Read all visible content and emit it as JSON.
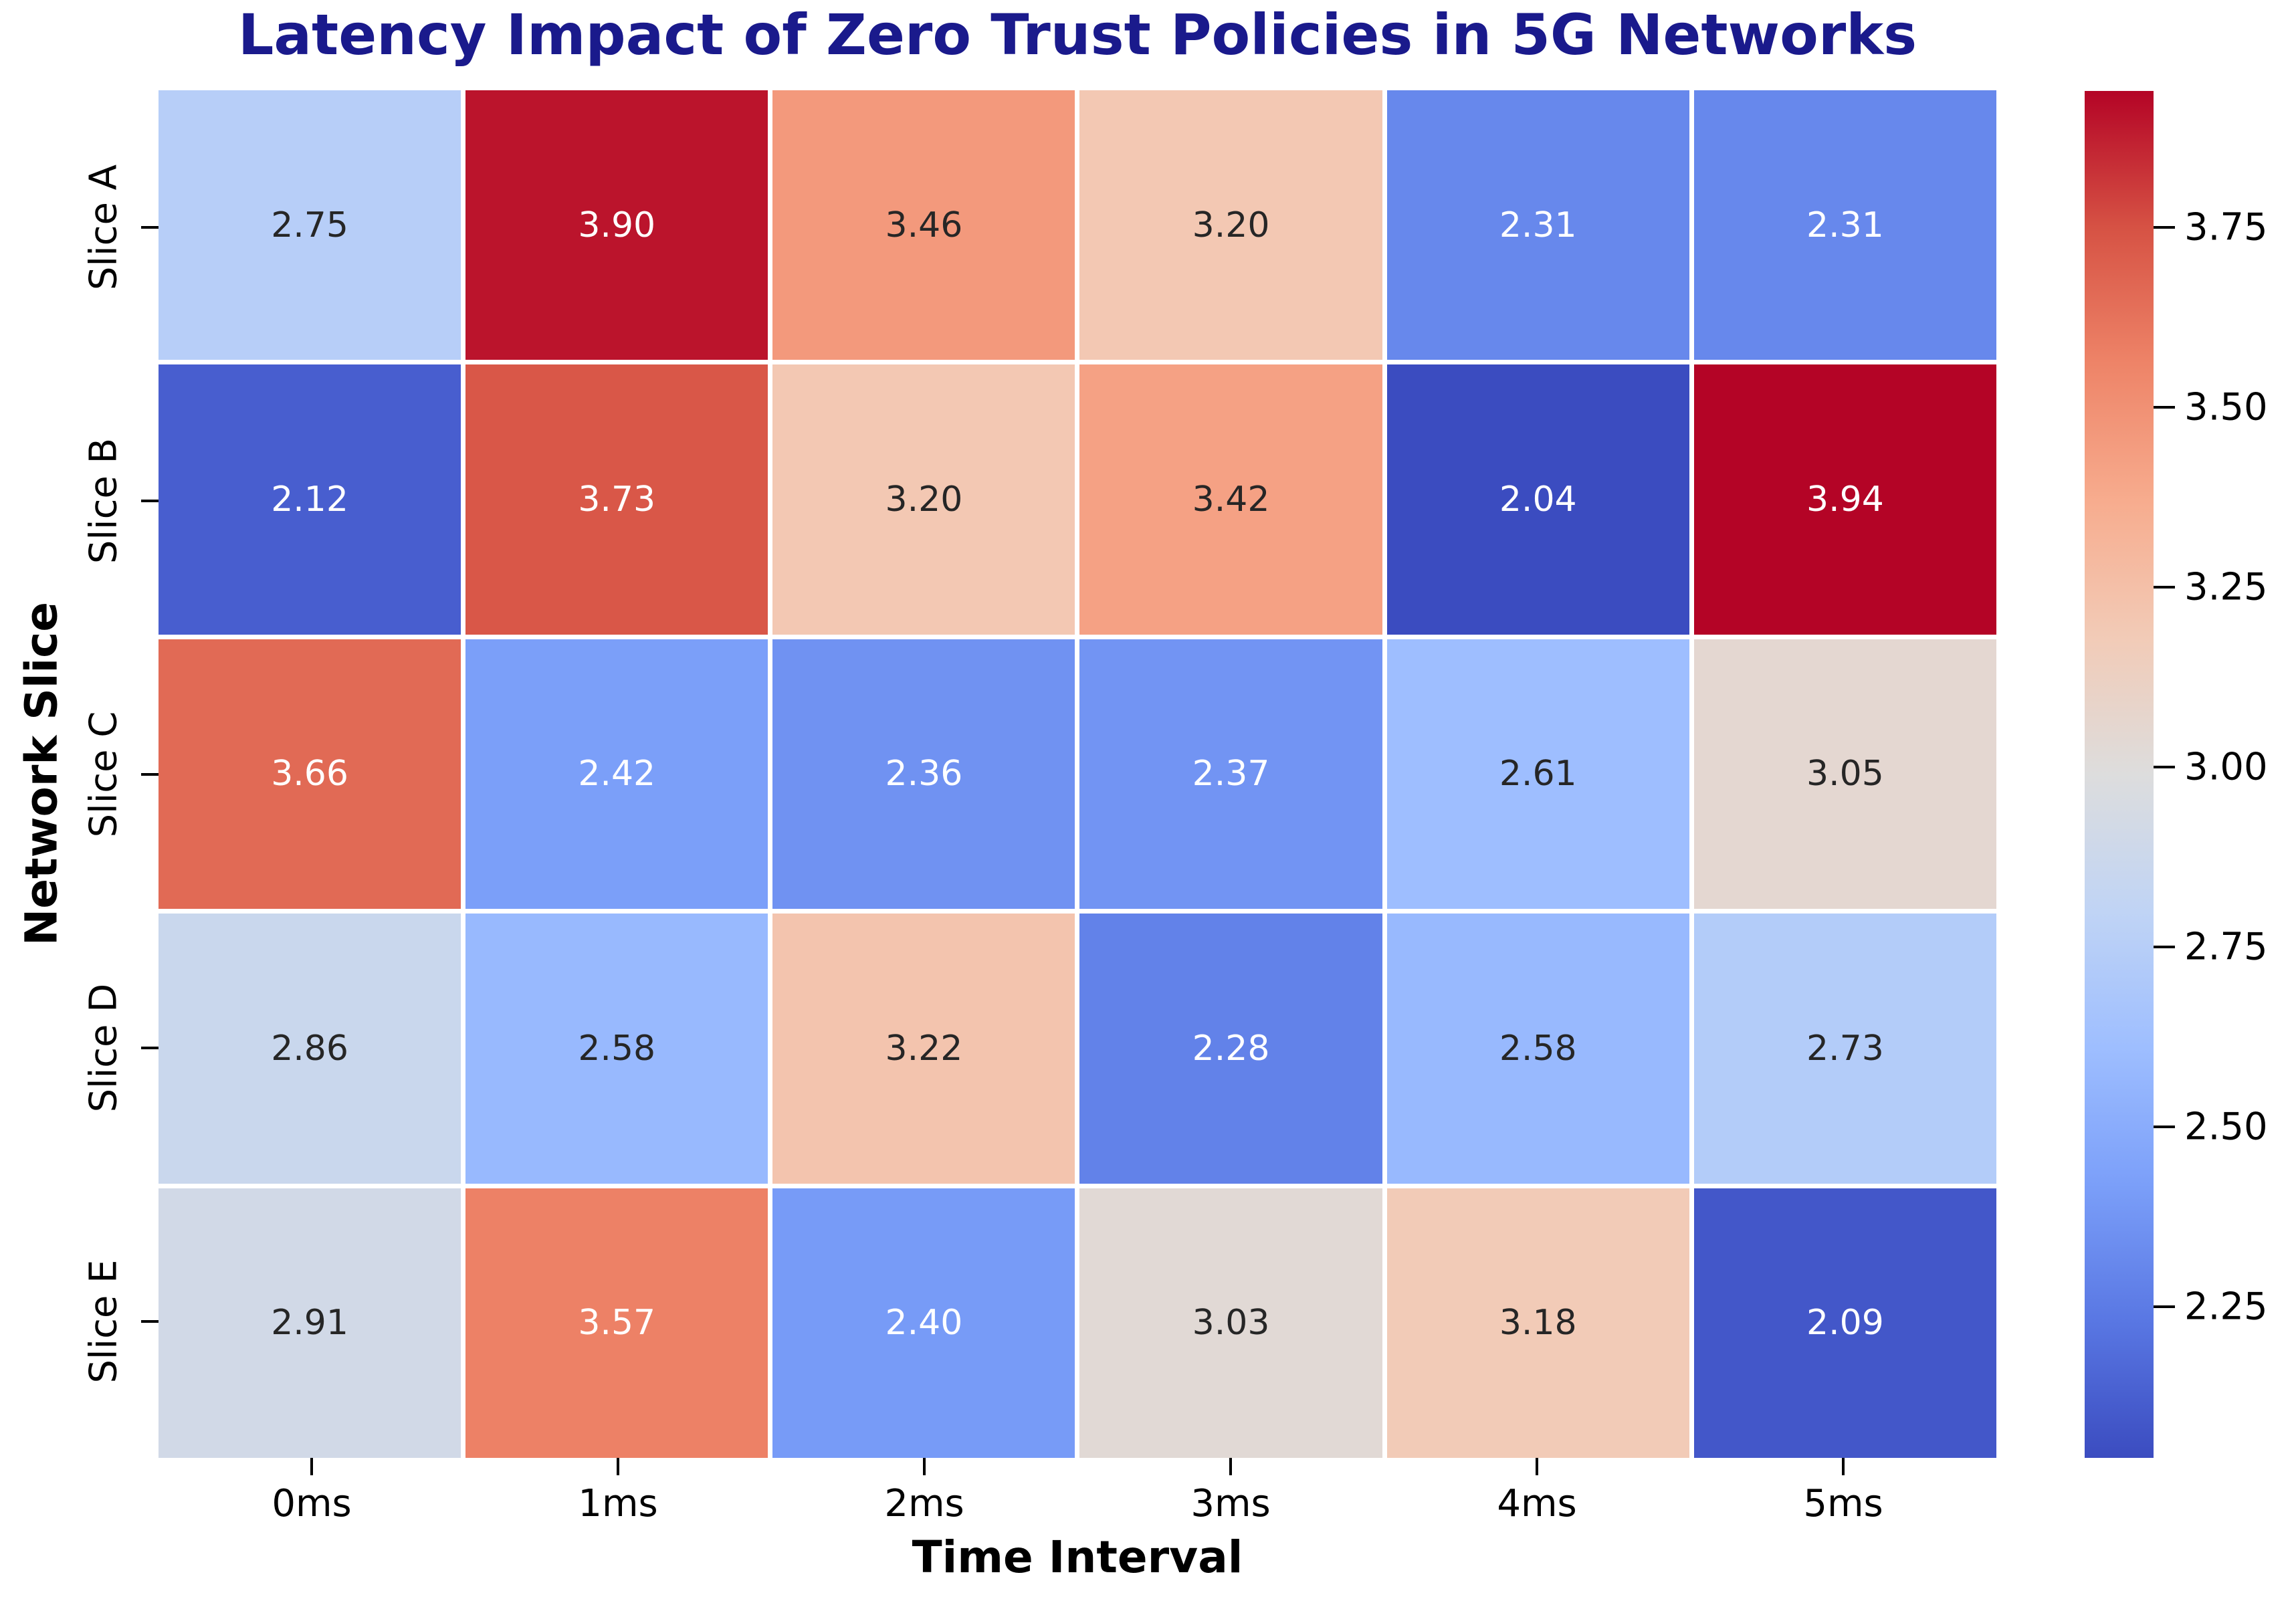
{
  "chart_data": {
    "type": "heatmap",
    "title": "Latency Impact of Zero Trust Policies in 5G Networks",
    "xlabel": "Time Interval",
    "ylabel": "Network Slice",
    "x_categories": [
      "0ms",
      "1ms",
      "2ms",
      "3ms",
      "4ms",
      "5ms"
    ],
    "y_categories": [
      "Slice A",
      "Slice B",
      "Slice C",
      "Slice D",
      "Slice E"
    ],
    "series": [
      {
        "name": "Slice A",
        "values": [
          2.75,
          3.9,
          3.46,
          3.2,
          2.31,
          2.31
        ]
      },
      {
        "name": "Slice B",
        "values": [
          2.12,
          3.73,
          3.2,
          3.42,
          2.04,
          3.94
        ]
      },
      {
        "name": "Slice C",
        "values": [
          3.66,
          2.42,
          2.36,
          2.37,
          2.61,
          3.05
        ]
      },
      {
        "name": "Slice D",
        "values": [
          2.86,
          2.58,
          3.22,
          2.28,
          2.58,
          2.73
        ]
      },
      {
        "name": "Slice E",
        "values": [
          2.91,
          3.57,
          2.4,
          3.03,
          3.18,
          2.09
        ]
      }
    ],
    "vmin": 2.04,
    "vmax": 3.94,
    "value_decimals": 2,
    "colormap": "coolwarm",
    "colormap_anchors": [
      [
        0.0,
        59,
        76,
        192
      ],
      [
        0.1,
        89,
        119,
        227
      ],
      [
        0.2,
        123,
        159,
        249
      ],
      [
        0.3,
        158,
        190,
        255
      ],
      [
        0.4,
        192,
        212,
        245
      ],
      [
        0.5,
        221,
        221,
        221
      ],
      [
        0.6,
        242,
        203,
        183
      ],
      [
        0.7,
        247,
        172,
        142
      ],
      [
        0.8,
        238,
        132,
        104
      ],
      [
        0.9,
        214,
        82,
        68
      ],
      [
        1.0,
        180,
        4,
        38
      ]
    ],
    "colorbar_tick_values": [
      3.75,
      3.5,
      3.25,
      3.0,
      2.75,
      2.5,
      2.25
    ],
    "colorbar_tick_labels": [
      "3.75",
      "3.50",
      "3.25",
      "3.00",
      "2.75",
      "2.50",
      "2.25"
    ],
    "legend_position": "right",
    "grid": false
  },
  "colors": {
    "title": "#1A1A8C",
    "tick_label": "#000000",
    "annotation_dark": "#262626",
    "annotation_light": "#FFFFFF",
    "cell_gap": "#FFFFFF"
  }
}
